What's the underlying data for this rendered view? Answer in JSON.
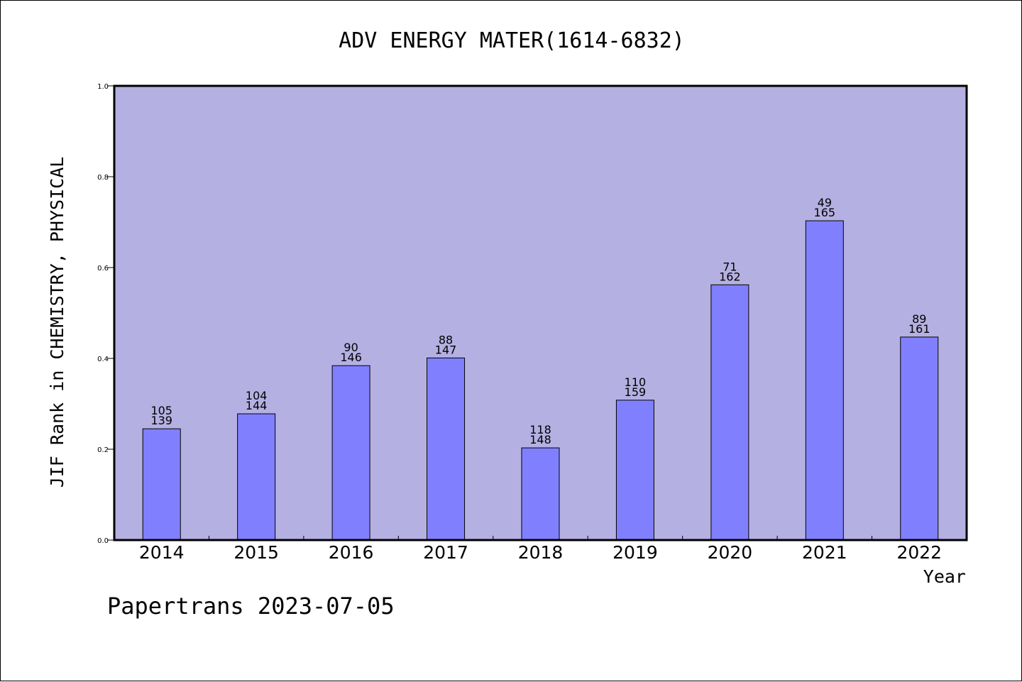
{
  "chart_data": {
    "type": "bar",
    "title": "ADV ENERGY MATER(1614-6832)",
    "xlabel": "Year",
    "ylabel": "JIF Rank in CHEMISTRY, PHYSICAL",
    "ylim": [
      0,
      1.0
    ],
    "yticks": [
      "0.0",
      "0.2",
      "0.4",
      "0.6",
      "0.8",
      "1.0"
    ],
    "grid": false,
    "categories": [
      "2014",
      "2015",
      "2016",
      "2017",
      "2018",
      "2019",
      "2020",
      "2021",
      "2022"
    ],
    "values": [
      0.245,
      0.278,
      0.384,
      0.401,
      0.203,
      0.308,
      0.562,
      0.703,
      0.447
    ],
    "rank": [
      "105",
      "104",
      "90",
      "88",
      "118",
      "110",
      "71",
      "49",
      "89"
    ],
    "total": [
      "139",
      "144",
      "146",
      "147",
      "148",
      "159",
      "162",
      "165",
      "161"
    ],
    "colors": {
      "plot_background": "#b5b0e2",
      "bar_fill": "#8080ff",
      "bar_stroke": "#000000",
      "axis": "#000000"
    }
  },
  "footer": {
    "watermark": "Papertrans 2023-07-05"
  }
}
